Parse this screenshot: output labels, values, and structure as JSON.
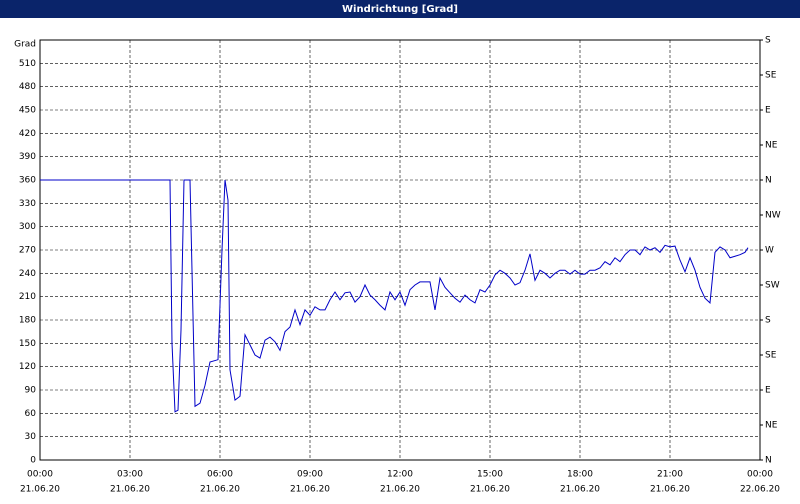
{
  "chart_data": {
    "type": "line",
    "title": "Windrichtung [Grad]",
    "y_label": "Grad",
    "xlim": [
      "21.06.20 00:00",
      "22.06.20 00:00"
    ],
    "xticks": [
      {
        "value": "21.06.20 00:00",
        "label": [
          "00:00",
          "21.06.20"
        ]
      },
      {
        "value": "21.06.20 03:00",
        "label": [
          "03:00",
          "21.06.20"
        ]
      },
      {
        "value": "21.06.20 06:00",
        "label": [
          "06:00",
          "21.06.20"
        ]
      },
      {
        "value": "21.06.20 09:00",
        "label": [
          "09:00",
          "21.06.20"
        ]
      },
      {
        "value": "21.06.20 12:00",
        "label": [
          "12:00",
          "21.06.20"
        ]
      },
      {
        "value": "21.06.20 15:00",
        "label": [
          "15:00",
          "21.06.20"
        ]
      },
      {
        "value": "21.06.20 18:00",
        "label": [
          "18:00",
          "21.06.20"
        ]
      },
      {
        "value": "21.06.20 21:00",
        "label": [
          "21:00",
          "21.06.20"
        ]
      },
      {
        "value": "22.06.20 00:00",
        "label": [
          "00:00",
          "22.06.20"
        ]
      }
    ],
    "ylim": [
      0,
      540
    ],
    "yticks": [
      0,
      30,
      60,
      90,
      120,
      150,
      180,
      210,
      240,
      270,
      300,
      330,
      360,
      390,
      420,
      450,
      480,
      510
    ],
    "y2lim": [
      0,
      540
    ],
    "y2ticks": [
      {
        "value": 0,
        "label": "N"
      },
      {
        "value": 45,
        "label": "NE"
      },
      {
        "value": 90,
        "label": "E"
      },
      {
        "value": 135,
        "label": "SE"
      },
      {
        "value": 180,
        "label": "S"
      },
      {
        "value": 225,
        "label": "SW"
      },
      {
        "value": 270,
        "label": "W"
      },
      {
        "value": 315,
        "label": "NW"
      },
      {
        "value": 360,
        "label": "N"
      },
      {
        "value": 405,
        "label": "NE"
      },
      {
        "value": 450,
        "label": "E"
      },
      {
        "value": 495,
        "label": "SE"
      },
      {
        "value": 540,
        "label": "S"
      }
    ],
    "grid": true,
    "series": [
      {
        "color": "#0000c8",
        "x": [
          "21.06.20 00:00",
          "21.06.20 04:20",
          "21.06.20 04:24",
          "21.06.20 04:30",
          "21.06.20 04:36",
          "21.06.20 04:42",
          "21.06.20 04:48",
          "21.06.20 05:00",
          "21.06.20 05:10",
          "21.06.20 05:20",
          "21.06.20 05:30",
          "21.06.20 05:40",
          "21.06.20 05:56",
          "21.06.20 06:04",
          "21.06.20 06:10",
          "21.06.20 06:16",
          "21.06.20 06:20",
          "21.06.20 06:30",
          "21.06.20 06:40",
          "21.06.20 06:50",
          "21.06.20 07:00",
          "21.06.20 07:10",
          "21.06.20 07:20",
          "21.06.20 07:30",
          "21.06.20 07:40",
          "21.06.20 07:50",
          "21.06.20 08:00",
          "21.06.20 08:10",
          "21.06.20 08:20",
          "21.06.20 08:30",
          "21.06.20 08:40",
          "21.06.20 08:50",
          "21.06.20 09:00",
          "21.06.20 09:10",
          "21.06.20 09:20",
          "21.06.20 09:30",
          "21.06.20 09:40",
          "21.06.20 09:50",
          "21.06.20 10:00",
          "21.06.20 10:10",
          "21.06.20 10:20",
          "21.06.20 10:30",
          "21.06.20 10:40",
          "21.06.20 10:50",
          "21.06.20 11:00",
          "21.06.20 11:10",
          "21.06.20 11:20",
          "21.06.20 11:30",
          "21.06.20 11:40",
          "21.06.20 11:50",
          "21.06.20 12:00",
          "21.06.20 12:10",
          "21.06.20 12:20",
          "21.06.20 12:30",
          "21.06.20 12:40",
          "21.06.20 12:50",
          "21.06.20 13:00",
          "21.06.20 13:10",
          "21.06.20 13:20",
          "21.06.20 13:30",
          "21.06.20 13:40",
          "21.06.20 13:50",
          "21.06.20 14:00",
          "21.06.20 14:10",
          "21.06.20 14:20",
          "21.06.20 14:30",
          "21.06.20 14:40",
          "21.06.20 14:50",
          "21.06.20 15:00",
          "21.06.20 15:10",
          "21.06.20 15:20",
          "21.06.20 15:30",
          "21.06.20 15:40",
          "21.06.20 15:50",
          "21.06.20 16:00",
          "21.06.20 16:10",
          "21.06.20 16:20",
          "21.06.20 16:30",
          "21.06.20 16:40",
          "21.06.20 16:50",
          "21.06.20 17:00",
          "21.06.20 17:10",
          "21.06.20 17:20",
          "21.06.20 17:30",
          "21.06.20 17:40",
          "21.06.20 17:50",
          "21.06.20 18:00",
          "21.06.20 18:10",
          "21.06.20 18:20",
          "21.06.20 18:30",
          "21.06.20 18:40",
          "21.06.20 18:50",
          "21.06.20 19:00",
          "21.06.20 19:10",
          "21.06.20 19:20",
          "21.06.20 19:30",
          "21.06.20 19:40",
          "21.06.20 19:50",
          "21.06.20 20:00",
          "21.06.20 20:10",
          "21.06.20 20:20",
          "21.06.20 20:30",
          "21.06.20 20:40",
          "21.06.20 20:50",
          "21.06.20 21:00",
          "21.06.20 21:10",
          "21.06.20 21:20",
          "21.06.20 21:30",
          "21.06.20 21:40",
          "21.06.20 21:50",
          "21.06.20 22:00",
          "21.06.20 22:10",
          "21.06.20 22:20",
          "21.06.20 22:30",
          "21.06.20 22:40",
          "21.06.20 22:50",
          "21.06.20 23:00",
          "21.06.20 23:10",
          "21.06.20 23:20",
          "21.06.20 23:30",
          "21.06.20 23:36"
        ],
        "values": [
          360,
          360,
          150,
          62,
          64,
          167,
          360,
          360,
          69,
          73,
          96,
          126,
          129,
          270,
          360,
          334,
          116,
          77,
          82,
          161,
          148,
          135,
          131,
          154,
          158,
          152,
          141,
          165,
          171,
          193,
          174,
          193,
          186,
          197,
          193,
          193,
          206,
          216,
          206,
          215,
          216,
          203,
          210,
          225,
          212,
          206,
          199,
          193,
          216,
          206,
          216,
          199,
          219,
          225,
          229,
          229,
          229,
          193,
          234,
          222,
          215,
          208,
          203,
          212,
          206,
          202,
          219,
          216,
          225,
          238,
          244,
          240,
          234,
          225,
          228,
          244,
          265,
          231,
          244,
          240,
          234,
          240,
          244,
          244,
          239,
          244,
          239,
          239,
          244,
          244,
          247,
          255,
          251,
          260,
          255,
          264,
          270,
          270,
          264,
          274,
          270,
          273,
          267,
          276,
          274,
          275,
          257,
          242,
          260,
          244,
          222,
          208,
          202,
          267,
          274,
          270,
          260,
          262,
          264,
          267,
          273
        ]
      }
    ]
  }
}
